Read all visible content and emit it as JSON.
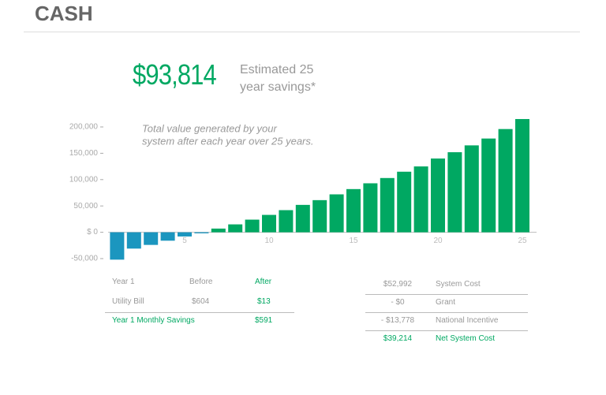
{
  "header": {
    "title": "CASH"
  },
  "summary": {
    "value": "$93,814",
    "label": "Estimated 25 year savings*"
  },
  "chart_data": {
    "type": "bar",
    "annotation": [
      "Total value generated by your",
      "system after each year over 25 years."
    ],
    "x": [
      1,
      2,
      3,
      4,
      5,
      6,
      7,
      8,
      9,
      10,
      11,
      12,
      13,
      14,
      15,
      16,
      17,
      18,
      19,
      20,
      21,
      22,
      23,
      24,
      25
    ],
    "values": [
      -52000,
      -31000,
      -24000,
      -16000,
      -8000,
      -2000,
      7000,
      15000,
      24000,
      33000,
      42000,
      52000,
      61000,
      72000,
      82000,
      93000,
      103000,
      115000,
      125000,
      140000,
      152000,
      165000,
      178000,
      196000,
      215000
    ],
    "colors": {
      "negative": "#1b96bf",
      "positive": "#00a862"
    },
    "ylim": [
      -50000,
      200000
    ],
    "yticks": [
      {
        "value": -50000,
        "label": "-50,000"
      },
      {
        "value": 0,
        "label": "$ 0"
      },
      {
        "value": 50000,
        "label": "50,000"
      },
      {
        "value": 100000,
        "label": "100,000"
      },
      {
        "value": 150000,
        "label": "150,000"
      },
      {
        "value": 200000,
        "label": "200,000"
      }
    ],
    "xlim": [
      0,
      25
    ],
    "xticks": [
      5,
      10,
      15,
      20,
      25
    ]
  },
  "table1": {
    "header": [
      "Year 1",
      "Before",
      "After"
    ],
    "rows": [
      [
        "Utility Bill",
        "$604",
        "$13"
      ]
    ],
    "footer": [
      "Year 1 Monthly Savings",
      "$591"
    ]
  },
  "table2": {
    "rows": [
      [
        "$52,992",
        "System Cost"
      ],
      [
        "- $0",
        "Grant"
      ],
      [
        "- $13,778",
        "National Incentive"
      ],
      [
        "$39,214",
        "Net System Cost"
      ]
    ]
  }
}
